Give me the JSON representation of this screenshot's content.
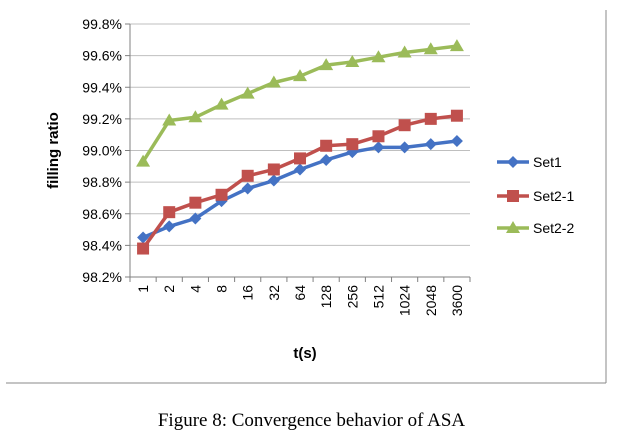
{
  "caption": "Figure 8: Convergence behavior of ASA",
  "chart_data": {
    "type": "line",
    "title": "",
    "xlabel": "t(s)",
    "ylabel": "filling ratio",
    "categories": [
      "1",
      "2",
      "4",
      "8",
      "16",
      "32",
      "64",
      "128",
      "256",
      "512",
      "1024",
      "2048",
      "3600"
    ],
    "ylim": [
      98.2,
      99.8
    ],
    "yticks": [
      "98.2%",
      "98.4%",
      "98.6%",
      "98.8%",
      "99.0%",
      "99.2%",
      "99.4%",
      "99.6%",
      "99.8%"
    ],
    "legend_position": "right",
    "grid": "horizontal",
    "series": [
      {
        "name": "Set1",
        "color": "#4472C4",
        "marker": "diamond",
        "values": [
          98.45,
          98.52,
          98.57,
          98.68,
          98.76,
          98.81,
          98.88,
          98.94,
          98.99,
          99.02,
          99.02,
          99.04,
          99.06
        ]
      },
      {
        "name": "Set2-1",
        "color": "#C0504D",
        "marker": "square",
        "values": [
          98.38,
          98.61,
          98.67,
          98.72,
          98.84,
          98.88,
          98.95,
          99.03,
          99.04,
          99.09,
          99.16,
          99.2,
          99.22
        ]
      },
      {
        "name": "Set2-2",
        "color": "#9BBB59",
        "marker": "triangle",
        "values": [
          98.93,
          99.19,
          99.21,
          99.29,
          99.36,
          99.43,
          99.47,
          99.54,
          99.56,
          99.59,
          99.62,
          99.64,
          99.66
        ]
      }
    ]
  }
}
